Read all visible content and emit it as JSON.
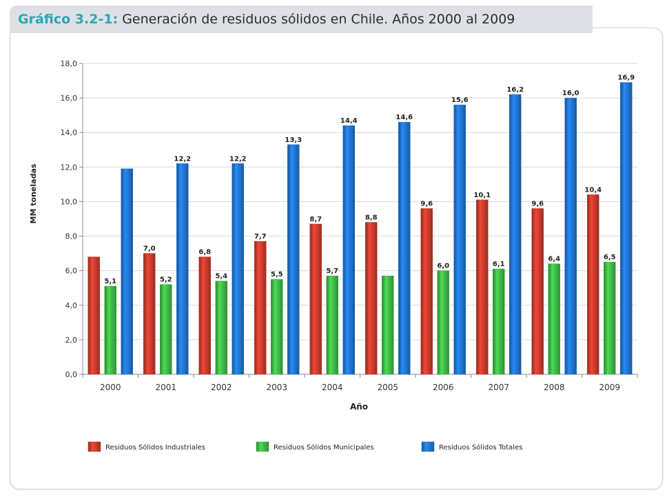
{
  "figure": {
    "title_prefix": "Gráfico 3.2-1:",
    "title_text": " Generación de residuos sólidos en Chile. Años 2000 al 2009"
  },
  "chart_data": {
    "type": "bar",
    "title": "Generación de residuos sólidos en Chile. Años 2000 al 2009",
    "xlabel": "Año",
    "ylabel": "MM toneladas",
    "ylim": [
      0,
      18
    ],
    "yticks": [
      "0,0",
      "2,0",
      "4,0",
      "6,0",
      "8,0",
      "10,0",
      "12,0",
      "14,0",
      "16,0",
      "18,0"
    ],
    "grid": true,
    "legend_position": "bottom",
    "categories": [
      "2000",
      "2001",
      "2002",
      "2003",
      "2004",
      "2005",
      "2006",
      "2007",
      "2008",
      "2009"
    ],
    "series": [
      {
        "name": "Residuos Sólidos Industriales",
        "color": "#c0392b",
        "values": [
          6.8,
          7.0,
          6.8,
          7.7,
          8.7,
          8.8,
          9.6,
          10.1,
          9.6,
          10.4
        ],
        "labels": [
          "",
          "7,0",
          "6,8",
          "7,7",
          "8,7",
          "8,8",
          "9,6",
          "10,1",
          "9,6",
          "10,4"
        ]
      },
      {
        "name": "Residuos Sólidos Municipales",
        "color": "#3cb043",
        "values": [
          5.1,
          5.2,
          5.4,
          5.5,
          5.7,
          5.7,
          6.0,
          6.1,
          6.4,
          6.5
        ],
        "labels": [
          "5,1",
          "5,2",
          "5,4",
          "5,5",
          "5,7",
          "",
          "6,0",
          "6,1",
          "6,4",
          "6,5"
        ]
      },
      {
        "name": "Residuos Sólidos Totales",
        "color": "#1f6fc5",
        "values": [
          11.9,
          12.2,
          12.2,
          13.3,
          14.4,
          14.6,
          15.6,
          16.2,
          16.0,
          16.9
        ],
        "labels": [
          "",
          "12,2",
          "12,2",
          "13,3",
          "14,4",
          "14,6",
          "15,6",
          "16,2",
          "16,0",
          "16,9"
        ]
      }
    ]
  }
}
